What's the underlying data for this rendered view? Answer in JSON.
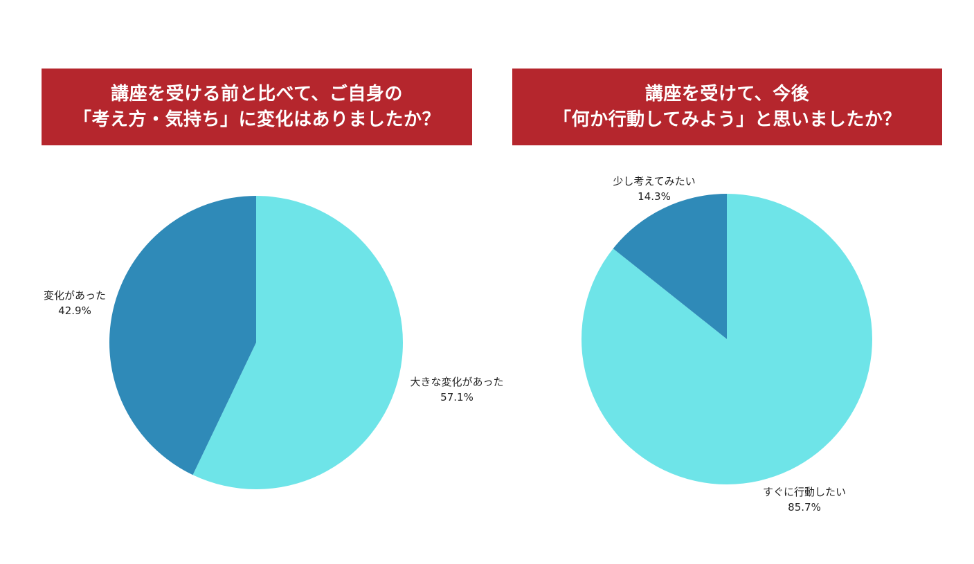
{
  "chart_data": [
    {
      "type": "pie",
      "title_lines": [
        "講座を受ける前と比べて、ご自身の",
        "「考え方・気持ち」に変化はありましたか？"
      ],
      "slices": [
        {
          "label": "大きな変化があった",
          "value": 57.1,
          "display": "57.1%",
          "color": "#6ee4e8"
        },
        {
          "label": "変化があった",
          "value": 42.9,
          "display": "42.9%",
          "color": "#2f8ab8"
        }
      ]
    },
    {
      "type": "pie",
      "title_lines": [
        "講座を受けて、今後",
        "「何か行動してみよう」と思いましたか？"
      ],
      "slices": [
        {
          "label": "すぐに行動したい",
          "value": 85.7,
          "display": "85.7%",
          "color": "#6ee4e8"
        },
        {
          "label": "少し考えてみたい",
          "value": 14.3,
          "display": "14.3%",
          "color": "#2f8ab8"
        }
      ]
    }
  ],
  "colors": {
    "banner_background": "#b5262d",
    "banner_text": "#ffffff",
    "slice_light": "#6ee4e8",
    "slice_dark": "#2f8ab8"
  }
}
